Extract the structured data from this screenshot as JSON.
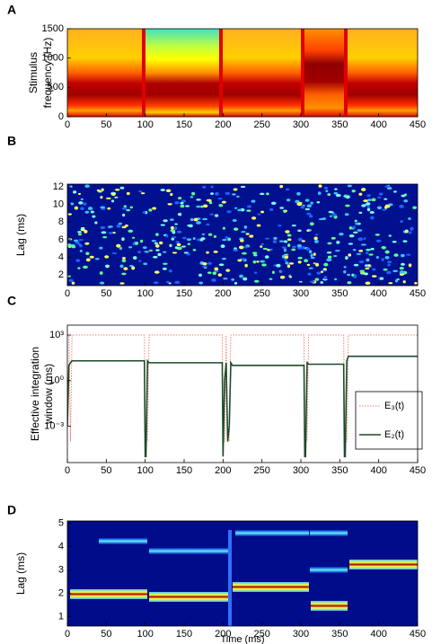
{
  "chart_data": [
    {
      "type": "heatmap",
      "label": "A",
      "ylabel": [
        "Stimulus",
        "frequency (Hz)"
      ],
      "xlim": [
        0,
        450
      ],
      "xticks": [
        0,
        50,
        100,
        150,
        200,
        250,
        300,
        350,
        400,
        450
      ],
      "ylim": [
        0,
        1500
      ],
      "yticks": [
        0,
        500,
        1000,
        1500
      ]
    },
    {
      "type": "heatmap",
      "label": "B",
      "ylabel": [
        "Lag (ms)"
      ],
      "xlim": [
        0,
        450
      ],
      "xticks": [
        0,
        50,
        100,
        150,
        200,
        250,
        300,
        350,
        400,
        450
      ],
      "ylim": [
        0.8,
        12.3
      ],
      "yticks": [
        2,
        4,
        6,
        8,
        10,
        12
      ]
    },
    {
      "type": "line",
      "label": "C",
      "ylabel": [
        "Effective integration",
        "window (ms)"
      ],
      "log_y": true,
      "legend": "right",
      "xlim": [
        0,
        450
      ],
      "xticks": [
        0,
        50,
        100,
        150,
        200,
        250,
        300,
        350,
        400,
        450
      ],
      "ylim": [
        4e-06,
        4500
      ],
      "yticks": [
        {
          "value": 0.001,
          "label": "10⁻³"
        },
        {
          "value": 1,
          "label": "10⁰"
        },
        {
          "value": 1000,
          "label": "10³"
        }
      ],
      "x": [
        0,
        2,
        4,
        6,
        10,
        99,
        100,
        101,
        103,
        105,
        199,
        200,
        202,
        204,
        206,
        208,
        210,
        212,
        304,
        305,
        306,
        308,
        310,
        355,
        356,
        357,
        359,
        361,
        365,
        450
      ],
      "series": [
        {
          "name": "E₃(t)",
          "color": "#f08070",
          "linestyle": "dotted",
          "values": [
            1000,
            1000,
            0.0001,
            1000,
            1000,
            1000,
            0.0001,
            0.0001,
            0.0001,
            1000,
            1000,
            0.0001,
            0.0001,
            1000,
            0.0001,
            0.0001,
            1000,
            1000,
            1000,
            0.0001,
            0.0001,
            0.0001,
            1000,
            1000,
            0.0001,
            0.0001,
            0.0001,
            1000,
            1000,
            1000
          ]
        },
        {
          "name": "E₂(t)",
          "color": "#1e4a2a",
          "linestyle": "solid",
          "values": [
            0.001,
            10,
            15,
            20,
            20,
            20,
            1e-05,
            1e-05,
            20,
            15,
            15,
            1e-05,
            1,
            15,
            0.0001,
            0.001,
            15,
            10,
            10,
            1e-05,
            1e-05,
            15,
            12,
            12,
            1e-05,
            1e-05,
            20,
            40,
            40,
            40
          ]
        }
      ]
    },
    {
      "type": "heatmap",
      "label": "D",
      "ylabel": [
        "Lag (ms)"
      ],
      "xlabel": "Time (ms)",
      "xlim": [
        0,
        450
      ],
      "xticks": [
        0,
        50,
        100,
        150,
        200,
        250,
        300,
        350,
        400,
        450
      ],
      "ylim": [
        0.6,
        5.1
      ],
      "yticks": [
        1,
        2,
        3,
        4,
        5
      ]
    }
  ]
}
